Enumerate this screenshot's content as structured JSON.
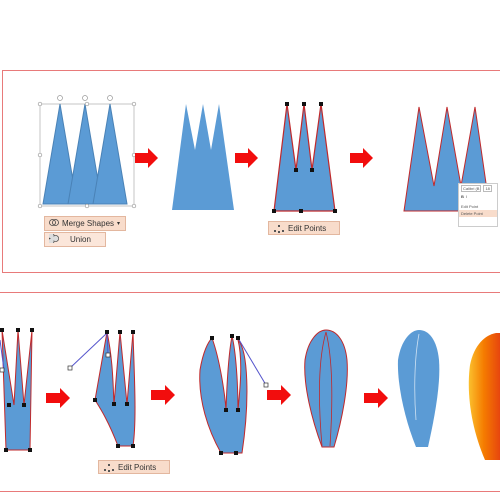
{
  "steps_top": {
    "merge_shapes_label": "Merge Shapes",
    "union_label": "Union",
    "edit_points_label": "Edit Points",
    "mini_toolbar": {
      "font": "Calibri (B",
      "size": "18",
      "bold": "B",
      "italic": "I",
      "edit_point": "Edit Point",
      "delete_point": "Delete Point"
    }
  },
  "steps_bottom": {
    "edit_points_label": "Edit Points"
  },
  "colors": {
    "shape_fill": "#5b9bd5",
    "shape_outline": "#3a6fa8",
    "edit_path": "#c0292b",
    "arrow": "#f20d0d",
    "frame": "#e87a7a",
    "chip": "#f8dccb",
    "gradient_start": "#f7a21b",
    "gradient_end": "#e23b0d"
  },
  "icons": [
    "merge-shapes-icon",
    "union-icon",
    "dropdown-arrow-icon",
    "edit-points-icon"
  ]
}
